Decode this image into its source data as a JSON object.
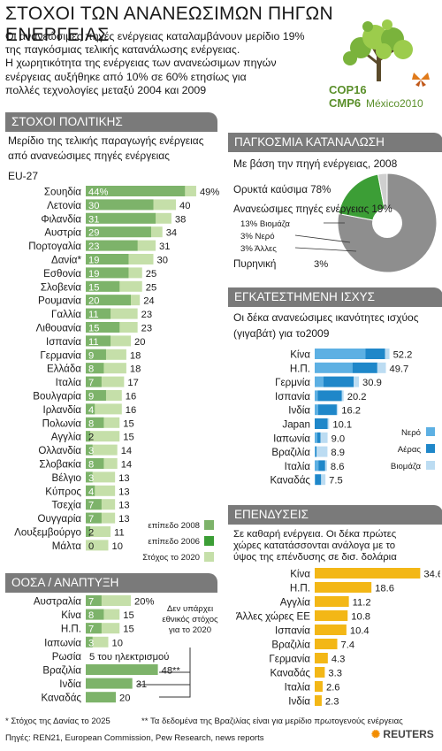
{
  "title": "ΣΤΟΧΟΙ ΤΩΝ ΑΝΑΝΕΩΣΙΜΩΝ ΠΗΓΩΝ ΕΝΕΡΓΕΙΑΣ",
  "intro": [
    "Οι ανανεώσιμες πηγές ενέργειας καταλαμβάνουν μερίδιο 19%",
    "της παγκόσμιας τελικής κατανάλωσης ενέργειας.",
    "Η χωρητικότητα της ενέργειας των ανανεώσιμων πηγών",
    "ενέργειας αυξήθηκε από 10% σε 60% ετησίως για",
    "πολλές τεχνολογίες μεταξύ 2004 και 2009"
  ],
  "logo": {
    "line1": "COP16",
    "line2": "CMP6",
    "city": "México2010"
  },
  "colors": {
    "header": "#7a7a7a",
    "dark_green": "#3c9e36",
    "mid_green": "#7db36a",
    "light_green": "#c5dfa9",
    "dark_blue": "#1f87c9",
    "mid_blue": "#5db0e3",
    "light_blue": "#bcdcf2",
    "gold": "#f3b716"
  },
  "sections": {
    "policy": "ΣΤΟΧΟΙ ΠΟΛΙΤΙΚΗΣ",
    "world": "ΠΑΓΚΟΣΜΙΑ ΚΑΤΑΝΑΛΩΣΗ",
    "capacity": "ΕΓΚΑΤΕΣΤΗΜΕΝΗ ΙΣΧΥΣ",
    "oecd": "ΟΟΣΑ / ΑΝΑΠΤΥΞΗ",
    "invest": "ΕΠΕΝΔΥΣΕΙΣ"
  },
  "policy_sub": [
    "Μερίδιο της τελικής παραγωγής ενέργειας",
    "από ανανεώσιμες πηγές ενέργειας"
  ],
  "eu_label": "EU-27",
  "oecd_note": [
    "Δεν υπάρχει",
    "εθνικός στόχος",
    "για το 2020"
  ],
  "world_sub": "Με βάση την πηγή ενέργειας, 2008",
  "capacity_sub": [
    "Οι δέκα ανανεώσιμες ικανότητες ισχύος",
    "(γιγαβάτ) για το2009"
  ],
  "invest_sub": [
    "Σε καθαρή ενέργεια. Οι δέκα πρώτες",
    "χώρες κατατάσσονται ανάλογα με το",
    "ύψος της επένδυσης σε δισ. δολάρια"
  ],
  "footnotes": [
    "* Στόχος της Δανίας το 2025",
    "** Τα δεδομένα της Βραζιλίας είναι για μερίδιο πρωτογενούς ενέργειας",
    "Πηγές: REN21, European Commission, Pew Research, news reports"
  ],
  "brand": "REUTERS",
  "chart_data": [
    {
      "type": "bar",
      "title": "ΣΤΟΧΟΙ ΠΟΛΙΤΙΚΗΣ",
      "categories": [
        "Σουηδία",
        "Λετονία",
        "Φιλανδία",
        "Αυστρία",
        "Πορτογαλία",
        "Δανία*",
        "Εσθονία",
        "Σλοβενία",
        "Ρουμανία",
        "Γαλλία",
        "Λιθουανία",
        "Ισπανία",
        "Γερμανία",
        "Ελλάδα",
        "Ιταλία",
        "Βουλγαρία",
        "Ιρλανδία",
        "Πολωνία",
        "Αγγλία",
        "Ολλανδία",
        "Σλοβακία",
        "Βέλγιο",
        "Κύπρος",
        "Τσεχία",
        "Ουγγαρία",
        "Λουξεμβούργο",
        "Μάλτα"
      ],
      "series": [
        {
          "name": "επίπεδο 2008",
          "values": [
            44,
            30,
            31,
            29,
            23,
            19,
            19,
            15,
            20,
            11,
            15,
            11,
            9,
            8,
            7,
            9,
            4,
            8,
            2,
            3,
            8,
            3,
            4,
            7,
            7,
            2,
            0
          ]
        },
        {
          "name": "επίπεδο 2006",
          "values": [
            null,
            null,
            null,
            null,
            null,
            null,
            null,
            null,
            null,
            null,
            null,
            null,
            null,
            null,
            null,
            null,
            null,
            null,
            null,
            null,
            null,
            null,
            null,
            null,
            null,
            null,
            null
          ]
        },
        {
          "name": "Στόχος το 2020",
          "values": [
            49,
            40,
            38,
            34,
            31,
            30,
            25,
            25,
            24,
            23,
            23,
            20,
            18,
            18,
            17,
            16,
            16,
            15,
            15,
            14,
            14,
            13,
            13,
            13,
            13,
            11,
            10
          ]
        }
      ],
      "labels_2008": [
        "44%",
        "30",
        "31",
        "29",
        "23",
        "19",
        "19",
        "15",
        "20",
        "11",
        "15",
        "11",
        "9",
        "8",
        "7",
        "9",
        "4",
        "8",
        "2",
        "3",
        "8",
        "3",
        "4",
        "7",
        "7",
        "2",
        "0"
      ],
      "labels_target": [
        "49%",
        "40",
        "38",
        "34",
        "31",
        "30",
        "25",
        "25",
        "24",
        "23",
        "23",
        "20",
        "18",
        "18",
        "17",
        "16",
        "16",
        "15",
        "15",
        "14",
        "14",
        "13",
        "13",
        "13",
        "13",
        "11",
        "10"
      ],
      "xlim": [
        0,
        50
      ]
    },
    {
      "type": "bar",
      "title": "ΟΟΣΑ / ΑΝΑΠΤΥΞΗ",
      "categories": [
        "Αυστραλία",
        "Κίνα",
        "Η.Π.",
        "Ιαπωνία",
        "Ρωσία",
        "Βραζιλία",
        "Ινδία",
        "Καναδάς"
      ],
      "series": [
        {
          "name": "επίπεδο 2008",
          "values": [
            7,
            8,
            7,
            3,
            null,
            null,
            null,
            null
          ]
        },
        {
          "name": "επίπεδο 2006",
          "values": [
            null,
            null,
            null,
            null,
            null,
            48,
            31,
            20
          ]
        },
        {
          "name": "Στόχος το 2020",
          "values": [
            20,
            15,
            15,
            10,
            null,
            null,
            null,
            null
          ]
        }
      ],
      "labels_level": [
        "7",
        "8",
        "7",
        "3",
        "",
        "48**",
        "31",
        "20"
      ],
      "labels_target": [
        "20%",
        "15",
        "15",
        "10",
        "5 του ηλεκτρισμού",
        "",
        "",
        ""
      ],
      "xlim": [
        0,
        50
      ]
    },
    {
      "type": "pie",
      "title": "ΠΑΓΚΟΣΜΙΑ ΚΑΤΑΝΑΛΩΣΗ",
      "categories": [
        "Ορυκτά καύσιμα",
        "Ανανεώσιμες πηγές ενέργειας",
        "Πυρηνική"
      ],
      "values": [
        78,
        19,
        3
      ],
      "labels": [
        "Ορυκτά καύσιμα 78%",
        "Ανανεώσιμες πηγές ενέργειας 19%",
        "Πυρηνική",
        "3%"
      ],
      "sub_categories": [
        "Βιομάζα",
        "Νερό",
        "Άλλες"
      ],
      "sub_values": [
        13,
        3,
        3
      ],
      "sub_labels": [
        "13% Βιομάζα",
        "3% Νερό",
        "3% Άλλες"
      ]
    },
    {
      "type": "bar",
      "title": "ΕΓΚΑΤΕΣΤΗΜΕΝΗ ΙΣΧΥΣ",
      "categories": [
        "Κίνα",
        "Η.Π.",
        "Γερμνία",
        "Ισπανία",
        "Ινδία",
        "Japan",
        "Ιαπωνία",
        "Βραζιλία",
        "Ιταλία",
        "Καναδάς"
      ],
      "series": [
        {
          "name": "Νερό",
          "values": [
            null,
            null,
            null,
            null,
            null,
            null,
            null,
            null,
            null,
            null
          ]
        },
        {
          "name": "Αέρας",
          "values": [
            null,
            null,
            null,
            null,
            null,
            null,
            null,
            null,
            null,
            null
          ]
        },
        {
          "name": "Βιομάζα",
          "values": [
            null,
            null,
            null,
            null,
            null,
            null,
            null,
            null,
            null,
            null
          ]
        }
      ],
      "totals": [
        52.2,
        49.7,
        30.9,
        20.2,
        16.2,
        10.1,
        9.0,
        8.9,
        8.6,
        7.5
      ],
      "total_labels": [
        "52.2",
        "49.7",
        "30.9",
        "20.2",
        "16.2",
        "10.1",
        "9.0",
        "8.9",
        "8.6",
        "7.5"
      ],
      "xlim": [
        0,
        55
      ]
    },
    {
      "type": "bar",
      "title": "ΕΠΕΝΔΥΣΕΙΣ",
      "categories": [
        "Κίνα",
        "Η.Π.",
        "Αγγλία",
        "Άλλες χώρες ΕΕ",
        "Ισπανία",
        "Βραζιλία",
        "Γερμανία",
        "Καναδάς",
        "Ιταλία",
        "Ινδία"
      ],
      "values": [
        34.6,
        18.6,
        11.2,
        10.8,
        10.4,
        7.4,
        4.3,
        3.3,
        2.6,
        2.3
      ],
      "value_labels": [
        "34.6",
        "18.6",
        "11.2",
        "10.8",
        "10.4",
        "7.4",
        "4.3",
        "3.3",
        "2.6",
        "2.3"
      ],
      "xlim": [
        0,
        36
      ]
    }
  ]
}
